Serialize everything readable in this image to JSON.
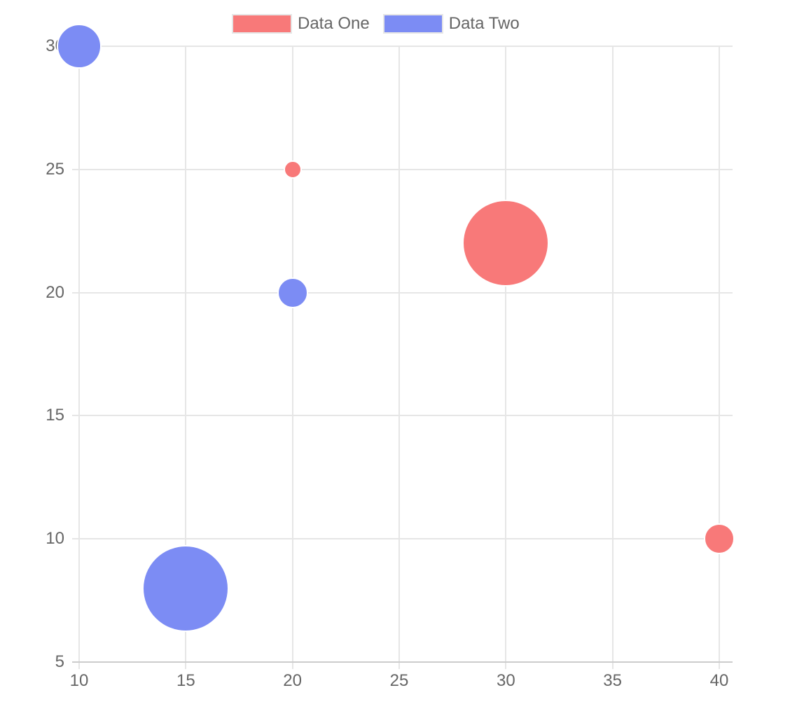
{
  "chart_data": {
    "type": "bubble",
    "title": "",
    "xlabel": "",
    "ylabel": "",
    "grid": true,
    "legend_position": "top",
    "x_axis": {
      "min": 10,
      "max": 40,
      "ticks": [
        10,
        15,
        20,
        25,
        30,
        35,
        40
      ]
    },
    "y_axis": {
      "min": 5,
      "max": 30,
      "ticks": [
        5,
        10,
        15,
        20,
        25,
        30
      ]
    },
    "series": [
      {
        "name": "Data One",
        "color": "#f87979",
        "points": [
          {
            "x": 20,
            "y": 25,
            "r": 11
          },
          {
            "x": 30,
            "y": 22,
            "r": 60
          },
          {
            "x": 40,
            "y": 10,
            "r": 20
          }
        ]
      },
      {
        "name": "Data Two",
        "color": "#7c8cf4",
        "points": [
          {
            "x": 10,
            "y": 30,
            "r": 30
          },
          {
            "x": 20,
            "y": 20,
            "r": 20
          },
          {
            "x": 15,
            "y": 8,
            "r": 60
          }
        ]
      }
    ]
  },
  "legend": {
    "items": [
      {
        "label": "Data One",
        "color": "#f87979"
      },
      {
        "label": "Data Two",
        "color": "#7c8cf4"
      }
    ]
  },
  "colors": {
    "grid": "#e6e6e6",
    "axis_border": "#cccccc",
    "tick_text": "#666666",
    "legend_text": "#666666",
    "bubble_border": "#ffffff",
    "legend_swatch_border": "#e6e6e6",
    "background": "#ffffff"
  }
}
